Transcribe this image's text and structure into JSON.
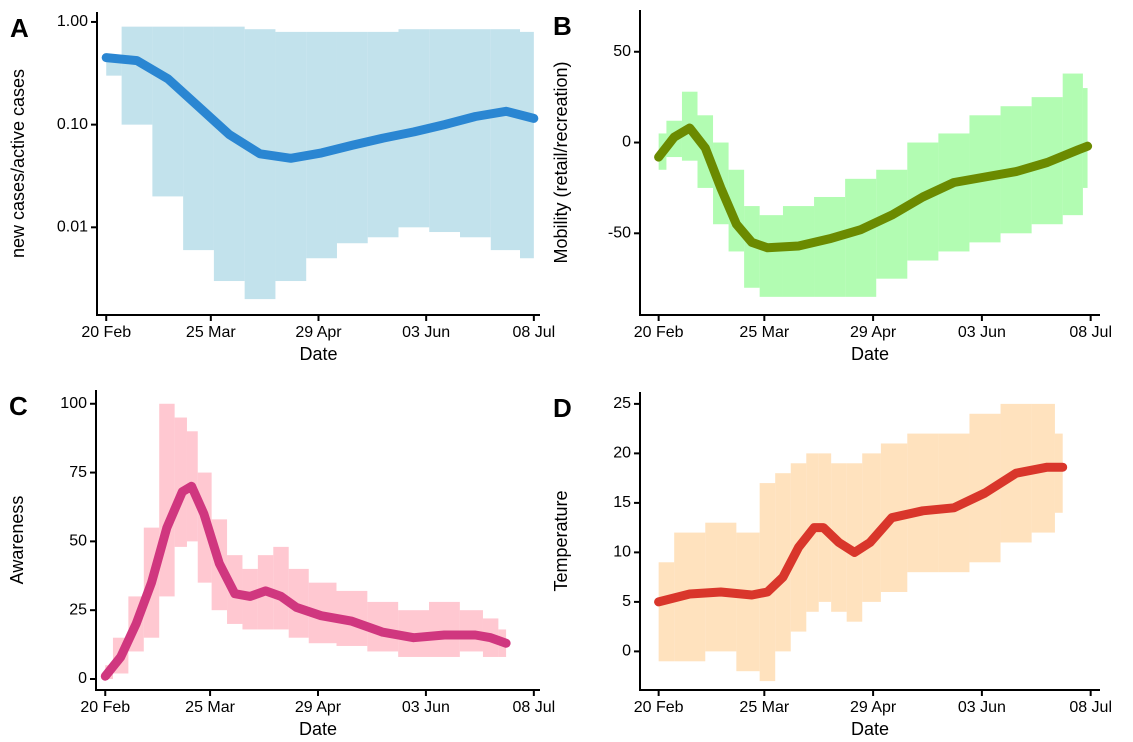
{
  "chart_data": [
    {
      "type": "line",
      "label": "A",
      "x_label": "Date",
      "y_label": "new cases/active cases",
      "log_scale": true,
      "x": [
        0,
        10,
        20,
        30,
        40,
        50,
        60,
        70,
        80,
        90,
        100,
        110,
        120,
        130,
        139
      ],
      "values": [
        0.45,
        0.42,
        0.28,
        0.15,
        0.08,
        0.052,
        0.047,
        0.053,
        0.063,
        0.074,
        0.085,
        0.1,
        0.12,
        0.135,
        0.115
      ],
      "color": "#2a86d2",
      "band": {
        "color": "#add8e6",
        "low": [
          0.3,
          0.1,
          0.02,
          0.006,
          0.003,
          0.002,
          0.003,
          0.005,
          0.007,
          0.008,
          0.01,
          0.009,
          0.008,
          0.006,
          0.005
        ],
        "high": [
          0.45,
          0.9,
          0.9,
          0.9,
          0.9,
          0.85,
          0.8,
          0.8,
          0.8,
          0.8,
          0.85,
          0.85,
          0.85,
          0.85,
          0.8
        ]
      },
      "xlim": [
        -3,
        141
      ],
      "xticks": [
        {
          "value": 0,
          "label": "20 Feb"
        },
        {
          "value": 34,
          "label": "25 Mar"
        },
        {
          "value": 69,
          "label": "29 Apr"
        },
        {
          "value": 104,
          "label": "03 Jun"
        },
        {
          "value": 139,
          "label": "08 Jul"
        }
      ],
      "ylim": [
        0.0014,
        1.25
      ],
      "yticks": [
        {
          "value": 1,
          "label": "1.00"
        },
        {
          "value": 0.1,
          "label": "0.10"
        },
        {
          "value": 0.01,
          "label": "0.01"
        }
      ]
    },
    {
      "type": "line",
      "label": "B",
      "x_label": "Date",
      "y_label": "Mobility (retail/recreation)",
      "log_scale": false,
      "x": [
        0,
        5,
        10,
        15,
        20,
        25,
        30,
        35,
        45,
        55,
        65,
        75,
        85,
        95,
        105,
        115,
        125,
        135,
        138
      ],
      "values": [
        -8,
        3,
        8,
        -3,
        -25,
        -45,
        -55,
        -58,
        -57,
        -53,
        -48,
        -40,
        -30,
        -22,
        -19,
        -16,
        -11,
        -4,
        -2
      ],
      "color": "#6b8a00",
      "band": {
        "color": "#98fb98",
        "low": [
          -15,
          -8,
          -10,
          -25,
          -45,
          -60,
          -80,
          -85,
          -85,
          -85,
          -85,
          -75,
          -65,
          -60,
          -55,
          -50,
          -45,
          -40,
          -25
        ],
        "high": [
          5,
          12,
          28,
          15,
          0,
          -15,
          -35,
          -40,
          -35,
          -30,
          -20,
          -15,
          0,
          5,
          15,
          20,
          25,
          38,
          30
        ]
      },
      "xlim": [
        -6,
        142
      ],
      "xticks": [
        {
          "value": 0,
          "label": "20 Feb"
        },
        {
          "value": 34,
          "label": "25 Mar"
        },
        {
          "value": 69,
          "label": "29 Apr"
        },
        {
          "value": 104,
          "label": "03 Jun"
        },
        {
          "value": 139,
          "label": "08 Jul"
        }
      ],
      "ylim": [
        -95,
        73
      ],
      "yticks": [
        -50,
        0,
        50
      ]
    },
    {
      "type": "line",
      "label": "C",
      "x_label": "Date",
      "y_label": "Awareness",
      "log_scale": false,
      "x": [
        0,
        5,
        10,
        15,
        20,
        25,
        28,
        32,
        37,
        42,
        47,
        52,
        57,
        62,
        70,
        80,
        90,
        100,
        110,
        120,
        125,
        130
      ],
      "values": [
        1,
        8,
        20,
        35,
        55,
        68,
        70,
        60,
        42,
        31,
        30,
        32,
        30,
        26,
        23,
        21,
        17,
        15,
        16,
        16,
        15,
        13
      ],
      "color": "#d0377f",
      "band": {
        "color": "#ffb6c1",
        "low": [
          0,
          2,
          10,
          15,
          30,
          48,
          50,
          35,
          25,
          20,
          18,
          18,
          18,
          15,
          13,
          12,
          10,
          8,
          8,
          10,
          8,
          8
        ],
        "high": [
          5,
          15,
          30,
          55,
          100,
          95,
          90,
          75,
          58,
          45,
          40,
          45,
          48,
          40,
          35,
          32,
          28,
          25,
          28,
          25,
          22,
          18
        ]
      },
      "xlim": [
        -3,
        141
      ],
      "xticks": [
        {
          "value": 0,
          "label": "20 Feb"
        },
        {
          "value": 34,
          "label": "25 Mar"
        },
        {
          "value": 69,
          "label": "29 Apr"
        },
        {
          "value": 104,
          "label": "03 Jun"
        },
        {
          "value": 139,
          "label": "08 Jul"
        }
      ],
      "ylim": [
        -4,
        105
      ],
      "yticks": [
        0,
        25,
        50,
        75,
        100
      ]
    },
    {
      "type": "line",
      "label": "D",
      "x_label": "Date",
      "y_label": "Temperature",
      "log_scale": false,
      "x": [
        0,
        10,
        20,
        30,
        35,
        40,
        45,
        50,
        53,
        58,
        63,
        68,
        75,
        85,
        95,
        105,
        115,
        125,
        130
      ],
      "values": [
        5,
        5.8,
        6,
        5.7,
        6,
        7.5,
        10.5,
        12.5,
        12.5,
        11,
        10,
        11,
        13.5,
        14.2,
        14.5,
        16,
        18,
        18.6,
        18.6
      ],
      "color": "#d9362b",
      "band": {
        "color": "#ffd8a8",
        "low": [
          -1,
          -1,
          0,
          -2,
          -3,
          0,
          2,
          4,
          5,
          4,
          3,
          5,
          6,
          8,
          8,
          9,
          11,
          12,
          14
        ],
        "high": [
          9,
          12,
          13,
          12,
          17,
          18,
          19,
          20,
          20,
          19,
          19,
          20,
          21,
          22,
          22,
          24,
          25,
          25,
          22
        ]
      },
      "xlim": [
        -6,
        142
      ],
      "xticks": [
        {
          "value": 0,
          "label": "20 Feb"
        },
        {
          "value": 34,
          "label": "25 Mar"
        },
        {
          "value": 69,
          "label": "29 Apr"
        },
        {
          "value": 104,
          "label": "03 Jun"
        },
        {
          "value": 139,
          "label": "08 Jul"
        }
      ],
      "ylim": [
        -3.9,
        26.2
      ],
      "yticks": [
        0,
        5,
        10,
        15,
        20,
        25
      ]
    }
  ]
}
